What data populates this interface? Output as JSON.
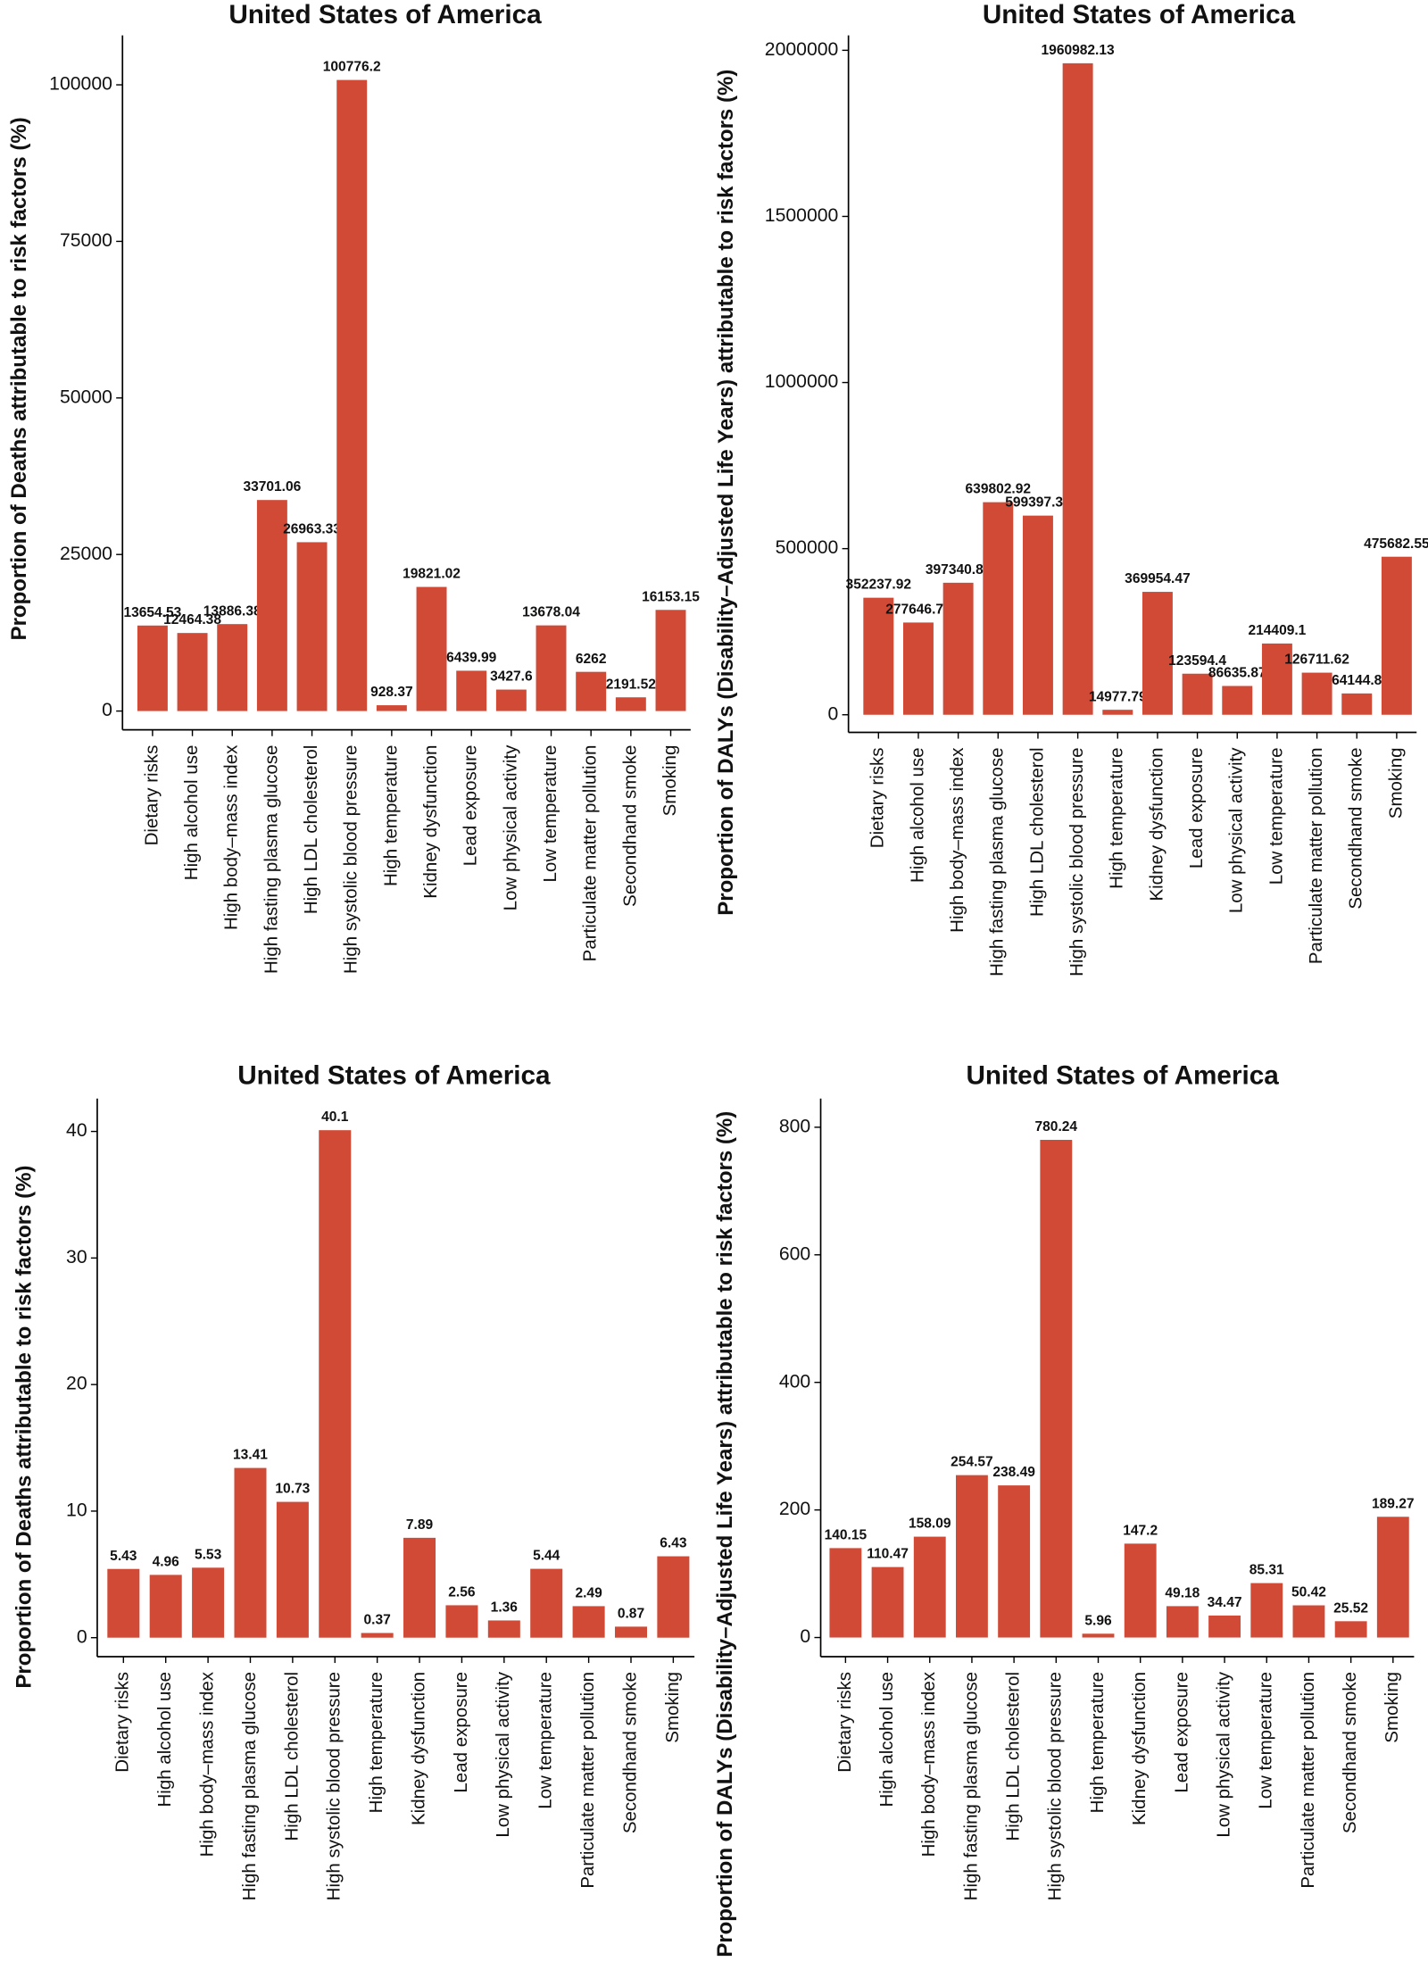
{
  "chart_data": [
    {
      "type": "bar",
      "title": "United States of America",
      "y_label": "Proportion of Deaths attributable to risk factors (%)",
      "categories": [
        "Dietary risks",
        "High alcohol use",
        "High body–mass index",
        "High fasting plasma glucose",
        "High LDL cholesterol",
        "High systolic blood pressure",
        "High temperature",
        "Kidney dysfunction",
        "Lead exposure",
        "Low physical activity",
        "Low temperature",
        "Particulate matter pollution",
        "Secondhand smoke",
        "Smoking"
      ],
      "values": [
        13654.53,
        12464.38,
        13886.38,
        33701.06,
        26963.33,
        100776.2,
        928.37,
        19821.02,
        6439.99,
        3427.6,
        13678.04,
        6262,
        2191.52,
        16153.15
      ],
      "color": "#d14a36",
      "ylim": [
        -3000,
        107900
      ],
      "yticks": [
        0,
        25000,
        50000,
        75000,
        100000
      ]
    },
    {
      "type": "bar",
      "title": "United States of America",
      "y_label": "Proportion of DALYs (Disability–Adjusted Life Years) attributable to risk factors (%)",
      "categories": [
        "Dietary risks",
        "High alcohol use",
        "High body–mass index",
        "High fasting plasma glucose",
        "High LDL cholesterol",
        "High systolic blood pressure",
        "High temperature",
        "Kidney dysfunction",
        "Lead exposure",
        "Low physical activity",
        "Low temperature",
        "Particulate matter pollution",
        "Secondhand smoke",
        "Smoking"
      ],
      "values": [
        352237.92,
        277646.72,
        397340.88,
        639802.92,
        599397.32,
        1960982.13,
        14977.79,
        369954.47,
        123594.4,
        86635.87,
        214409.1,
        126711.62,
        64144.8,
        475682.55
      ],
      "color": "#d14a36",
      "ylim": [
        -53000,
        2045000
      ],
      "yticks": [
        0,
        500000,
        1000000,
        1500000,
        2000000
      ]
    },
    {
      "type": "bar",
      "title": "United States of America",
      "y_label": "Proportion of Deaths attributable to risk factors (%)",
      "categories": [
        "Dietary risks",
        "High alcohol use",
        "High body–mass index",
        "High fasting plasma glucose",
        "High LDL cholesterol",
        "High systolic blood pressure",
        "High temperature",
        "Kidney dysfunction",
        "Lead exposure",
        "Low physical activity",
        "Low temperature",
        "Particulate matter pollution",
        "Secondhand smoke",
        "Smoking"
      ],
      "values": [
        5.43,
        4.96,
        5.53,
        13.41,
        10.73,
        40.1,
        0.37,
        7.89,
        2.56,
        1.36,
        5.44,
        2.49,
        0.87,
        6.43
      ],
      "color": "#d14a36",
      "ylim": [
        -1.5,
        42.6
      ],
      "yticks": [
        0,
        10,
        20,
        30,
        40
      ]
    },
    {
      "type": "bar",
      "title": "United States of America",
      "y_label": "Proportion of DALYs (Disability–Adjusted Life Years) attributable to risk factors (%)",
      "categories": [
        "Dietary risks",
        "High alcohol use",
        "High body–mass index",
        "High fasting plasma glucose",
        "High LDL cholesterol",
        "High systolic blood pressure",
        "High temperature",
        "Kidney dysfunction",
        "Lead exposure",
        "Low physical activity",
        "Low temperature",
        "Particulate matter pollution",
        "Secondhand smoke",
        "Smoking"
      ],
      "values": [
        140.15,
        110.47,
        158.09,
        254.57,
        238.49,
        780.24,
        5.96,
        147.2,
        49.18,
        34.47,
        85.31,
        50.42,
        25.52,
        189.27
      ],
      "color": "#d14a36",
      "ylim": [
        -30,
        845
      ],
      "yticks": [
        0,
        200,
        400,
        600,
        800
      ]
    }
  ]
}
